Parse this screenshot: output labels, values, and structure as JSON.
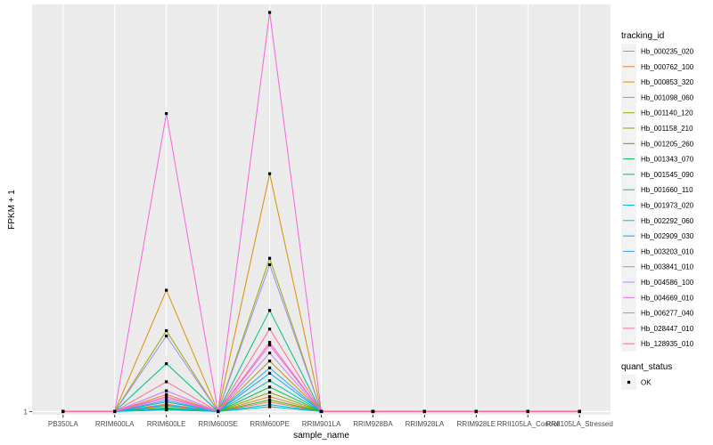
{
  "chart_data": {
    "type": "line",
    "xlabel": "sample_name",
    "ylabel": "FPKM + 1",
    "y_tick_labels": [
      {
        "value": 1,
        "label": "1"
      }
    ],
    "ylim": [
      0.94,
      8.65
    ],
    "grid": true,
    "legend_placement": "right",
    "categories": [
      "PB350LA",
      "RRIM600LA",
      "RRIM600LE",
      "RRIM600SE",
      "RRIM600PE",
      "RRIM901LA",
      "RRIM928BA",
      "RRIM928LA",
      "RRIM928LE",
      "RRII105LA_Control",
      "RRII105LA_Stressed"
    ],
    "legend_title": "tracking_id",
    "series": [
      {
        "name": "Hb_000235_020",
        "color": "#F8766D",
        "values": [
          1,
          1,
          1.14,
          1,
          1.18,
          1,
          1,
          1,
          1,
          1,
          1
        ]
      },
      {
        "name": "Hb_000762_100",
        "color": "#EA8331",
        "values": [
          1,
          1,
          1.32,
          1,
          1.28,
          1,
          1,
          1,
          1,
          1,
          1
        ]
      },
      {
        "name": "Hb_000853_320",
        "color": "#D89000",
        "values": [
          1,
          1,
          3.28,
          1,
          5.47,
          1,
          1,
          1,
          1,
          1,
          1
        ]
      },
      {
        "name": "Hb_001098_060",
        "color": "#C09B00",
        "values": [
          1,
          1,
          1.1,
          1,
          1.95,
          1,
          1,
          1,
          1,
          1,
          1
        ]
      },
      {
        "name": "Hb_001140_120",
        "color": "#A3A500",
        "values": [
          1,
          1,
          2.52,
          1,
          3.88,
          1,
          1,
          1,
          1,
          1,
          1
        ]
      },
      {
        "name": "Hb_001158_210",
        "color": "#7CAE00",
        "values": [
          1,
          1,
          1.05,
          1,
          1.36,
          1,
          1,
          1,
          1,
          1,
          1
        ]
      },
      {
        "name": "Hb_001205_260",
        "color": "#39B600",
        "values": [
          1,
          1,
          1.04,
          1,
          1.22,
          1,
          1,
          1,
          1,
          1,
          1
        ]
      },
      {
        "name": "Hb_001343_070",
        "color": "#00BB4E",
        "values": [
          1,
          1,
          1.07,
          1,
          1.46,
          1,
          1,
          1,
          1,
          1,
          1
        ]
      },
      {
        "name": "Hb_001545_090",
        "color": "#00BF7D",
        "values": [
          1,
          1,
          1.9,
          1,
          2.9,
          1,
          1,
          1,
          1,
          1,
          1
        ]
      },
      {
        "name": "Hb_001660_110",
        "color": "#00C1A3",
        "values": [
          1,
          1,
          1.18,
          1,
          1.58,
          1,
          1,
          1,
          1,
          1,
          1
        ]
      },
      {
        "name": "Hb_001973_020",
        "color": "#00BFC4",
        "values": [
          1,
          1,
          1.03,
          1,
          1.09,
          1,
          1,
          1,
          1,
          1,
          1
        ]
      },
      {
        "name": "Hb_002292_060",
        "color": "#00BAE0",
        "values": [
          1,
          1,
          1.05,
          1,
          1.13,
          1,
          1,
          1,
          1,
          1,
          1
        ]
      },
      {
        "name": "Hb_002909_030",
        "color": "#00B0F6",
        "values": [
          1,
          1,
          1.12,
          1,
          1.72,
          1,
          1,
          1,
          1,
          1,
          1
        ]
      },
      {
        "name": "Hb_003203_010",
        "color": "#35A2FF",
        "values": [
          1,
          1,
          1.21,
          1,
          1.82,
          1,
          1,
          1,
          1,
          1,
          1
        ]
      },
      {
        "name": "Hb_003841_010",
        "color": "#9590FF",
        "values": [
          1,
          1,
          2.42,
          1,
          3.76,
          1,
          1,
          1,
          1,
          1,
          1
        ]
      },
      {
        "name": "Hb_004586_100",
        "color": "#C77CFF",
        "values": [
          1,
          1,
          1.39,
          1,
          2.1,
          1,
          1,
          1,
          1,
          1,
          1
        ]
      },
      {
        "name": "Hb_004669_010",
        "color": "#E76BF3",
        "values": [
          1,
          1,
          1.25,
          1,
          2.25,
          1,
          1,
          1,
          1,
          1,
          1
        ]
      },
      {
        "name": "Hb_006277_040",
        "color": "#FA62DB",
        "values": [
          1,
          1,
          6.6,
          1,
          8.5,
          1,
          1,
          1,
          1,
          1,
          1
        ]
      },
      {
        "name": "Hb_028447_010",
        "color": "#FF62BC",
        "values": [
          1,
          1,
          1.28,
          1,
          2.3,
          1,
          1,
          1,
          1,
          1,
          1
        ]
      },
      {
        "name": "Hb_128935_010",
        "color": "#FF6C91",
        "values": [
          1,
          1,
          1.56,
          1,
          2.55,
          1,
          1,
          1,
          1,
          1,
          1
        ]
      }
    ],
    "point_legend": {
      "title": "quant_status",
      "entries": [
        {
          "label": "OK"
        }
      ]
    }
  }
}
